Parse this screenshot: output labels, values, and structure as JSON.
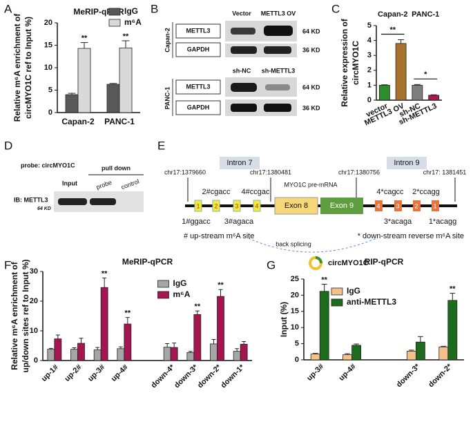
{
  "panel_labels": [
    "A",
    "B",
    "C",
    "D",
    "E",
    "F",
    "G"
  ],
  "chart_data": [
    {
      "type": "bar",
      "title": "MeRIP-qPCR",
      "ylabel": [
        "Relative m⁶A enrichment of",
        "circMYO1C ref to Input %)"
      ],
      "categories": [
        "Capan-2",
        "PANC-1"
      ],
      "series": [
        {
          "name": "IgG",
          "color": "#595959",
          "values": [
            4.0,
            6.3
          ],
          "errors": [
            0.3,
            0.2
          ]
        },
        {
          "name": "m⁶A",
          "color": "#d9d9d9",
          "values": [
            14.3,
            14.4
          ],
          "errors": [
            1.3,
            1.6
          ],
          "significance": [
            "**",
            "**"
          ]
        }
      ],
      "ylim": [
        0,
        20
      ],
      "yticks": [
        0,
        5,
        10,
        15,
        20
      ],
      "legend": "upper right"
    },
    {
      "type": "bar",
      "ylabel": [
        "Relative expression of",
        "circMYO1C"
      ],
      "categories": [
        "vector",
        "METTL3 OV",
        "sh-NC",
        "sh-METTL3"
      ],
      "groups": [
        "Capan-2",
        "PANC-1"
      ],
      "values": [
        1.0,
        3.8,
        1.0,
        0.33
      ],
      "errors": [
        0.03,
        0.25,
        0.05,
        0.03
      ],
      "colors": [
        "#2e8b2e",
        "#a6722c",
        "#7f7f7f",
        "#b0174f"
      ],
      "significance": [
        "**",
        "*"
      ],
      "ylim": [
        0,
        5
      ],
      "yticks": [
        0,
        1,
        2,
        3,
        4,
        5
      ]
    },
    {
      "type": "bar",
      "title": "MeRIP-qPCR",
      "ylabel": [
        "Relative m⁶A enrichment of",
        "up/down sites ref to Input %)"
      ],
      "categories": [
        "up-1#",
        "up-2#",
        "up-3#",
        "up-4#",
        null,
        "down-4*",
        "down-3*",
        "down-2*",
        "down-1*"
      ],
      "series": [
        {
          "name": "IgG",
          "color": "#a6a6a6",
          "values": [
            3.8,
            3.8,
            3.6,
            4.0,
            null,
            4.5,
            2.7,
            5.6,
            3.1
          ],
          "errors": [
            0.3,
            0.5,
            0.8,
            0.6,
            null,
            1.2,
            0.4,
            1.5,
            0.9
          ]
        },
        {
          "name": "m⁶A",
          "color": "#a3164f",
          "values": [
            7.3,
            5.8,
            24.6,
            12.3,
            null,
            4.4,
            15.5,
            21.6,
            5.5
          ],
          "errors": [
            1.3,
            1.7,
            3.2,
            2.2,
            null,
            1.5,
            1.2,
            2.3,
            0.9
          ],
          "significance": [
            null,
            null,
            "**",
            "**",
            null,
            null,
            "**",
            "**",
            null
          ]
        }
      ],
      "ylim": [
        0,
        30
      ],
      "yticks": [
        0,
        10,
        20,
        30
      ],
      "legend": "upper center"
    },
    {
      "type": "bar",
      "title": "RIP-qPCR",
      "ylabel": [
        "Input (%)"
      ],
      "categories": [
        "up-3#",
        "up-4#",
        null,
        "down-3*",
        "down-2*"
      ],
      "series": [
        {
          "name": "IgG",
          "color": "#f5c08a",
          "values": [
            1.8,
            1.6,
            null,
            2.7,
            4.0
          ],
          "errors": [
            0.2,
            0.3,
            null,
            0.3,
            0.2
          ]
        },
        {
          "name": "anti-METTL3",
          "color": "#1d6b1d",
          "values": [
            21.2,
            4.5,
            null,
            5.5,
            18.4
          ],
          "errors": [
            2.2,
            0.4,
            null,
            1.7,
            2.2
          ],
          "significance": [
            "**",
            null,
            null,
            null,
            "**"
          ]
        }
      ],
      "ylim": [
        0,
        25
      ],
      "yticks": [
        0,
        5,
        10,
        15,
        20,
        25
      ],
      "legend": "upper left"
    }
  ],
  "blot_b": {
    "lanes_top": [
      "Vector",
      "METTL3 OV"
    ],
    "lanes_bottom": [
      "sh-NC",
      "sh-METTL3"
    ],
    "proteins": [
      "METTL3",
      "GAPDH"
    ],
    "sizes": [
      "64 KD",
      "36 KD"
    ],
    "cell_lines": [
      "Capan-2",
      "PANC-1"
    ]
  },
  "blot_d": {
    "probe": "probe: circMYO1C",
    "pull_down": "pull down",
    "lanes": [
      "Input",
      "probe",
      "control"
    ],
    "antibody": "IB: METTL3",
    "size": "64 KD"
  },
  "diagram_e": {
    "introns": [
      "Intron 7",
      "Intron 9"
    ],
    "coordinates": [
      "chr17:1379660",
      "chr17:1380481",
      "chr17:1380756",
      "chr17: 1381451"
    ],
    "pre_mrna": "MYO1C pre-mRNA",
    "exons": [
      "Exon 8",
      "Exon 9"
    ],
    "sites_above": [
      "2#cgacc",
      "4#ccgac",
      "4*cagcc",
      "2*ccagg"
    ],
    "sites_below": [
      "1#ggacc",
      "3#agaca",
      "3*acaga",
      "1*acagg"
    ],
    "site_numbers": [
      "1",
      "2",
      "3",
      "4",
      "4",
      "3",
      "2",
      "1"
    ],
    "legend": [
      "# up-stream m⁶A site",
      "* down-stream reverse m⁶A site"
    ],
    "back_splicing": "back splicing",
    "product": "circMYO1C"
  }
}
